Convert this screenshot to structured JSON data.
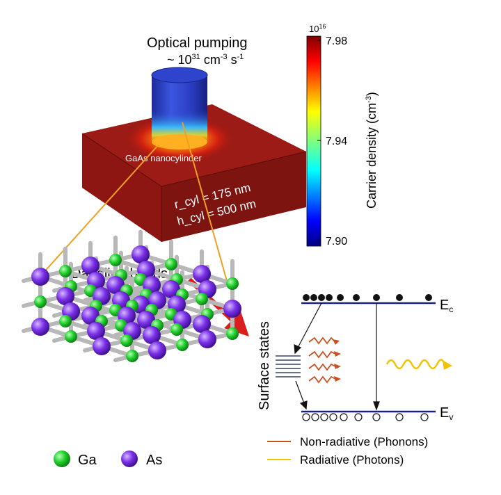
{
  "pumping": {
    "title": "Optical pumping",
    "rate_prefix": "~ 10",
    "rate_exp": "31",
    "rate_unit": "cm",
    "rate_unit_exp": "-3",
    "rate_unit2": "s",
    "rate_unit2_exp": "-1"
  },
  "device": {
    "label": "GaAs nanocylinder",
    "r_cyl": "r_cyl = 175 nm",
    "h_cyl": "h_cyl = 500 nm",
    "block_color": "#8b1616",
    "cylinder_color": "#2a3dbd"
  },
  "colorbar": {
    "multiplier_base": "10",
    "multiplier_exp": "16",
    "ticks": [
      "7.98",
      "7.94",
      "7.90"
    ],
    "tick_values": [
      7.98,
      7.94,
      7.9
    ],
    "range": [
      7.9,
      7.98
    ],
    "colormap": "jet",
    "title_prefix": "Carrier density (cm",
    "title_exp": "-3",
    "title_suffix": ")"
  },
  "lattice": {
    "callout": "Dangling bonds",
    "legend": [
      {
        "label": "Ga",
        "color": "#1fcf2b"
      },
      {
        "label": "As",
        "color": "#7b2ee6"
      }
    ]
  },
  "bands": {
    "surface_states": "Surface states",
    "conduction": "E",
    "conduction_sub": "c",
    "valence": "E",
    "valence_sub": "v",
    "band_color": "#1a2088",
    "legend": [
      {
        "label": "Non-radiative (Phonons)",
        "color": "#c8501e"
      },
      {
        "label": "Radiative (Photons)",
        "color": "#f2c400"
      }
    ]
  },
  "arrow_color": "#d81e1e",
  "guide_color": "#f0a020"
}
